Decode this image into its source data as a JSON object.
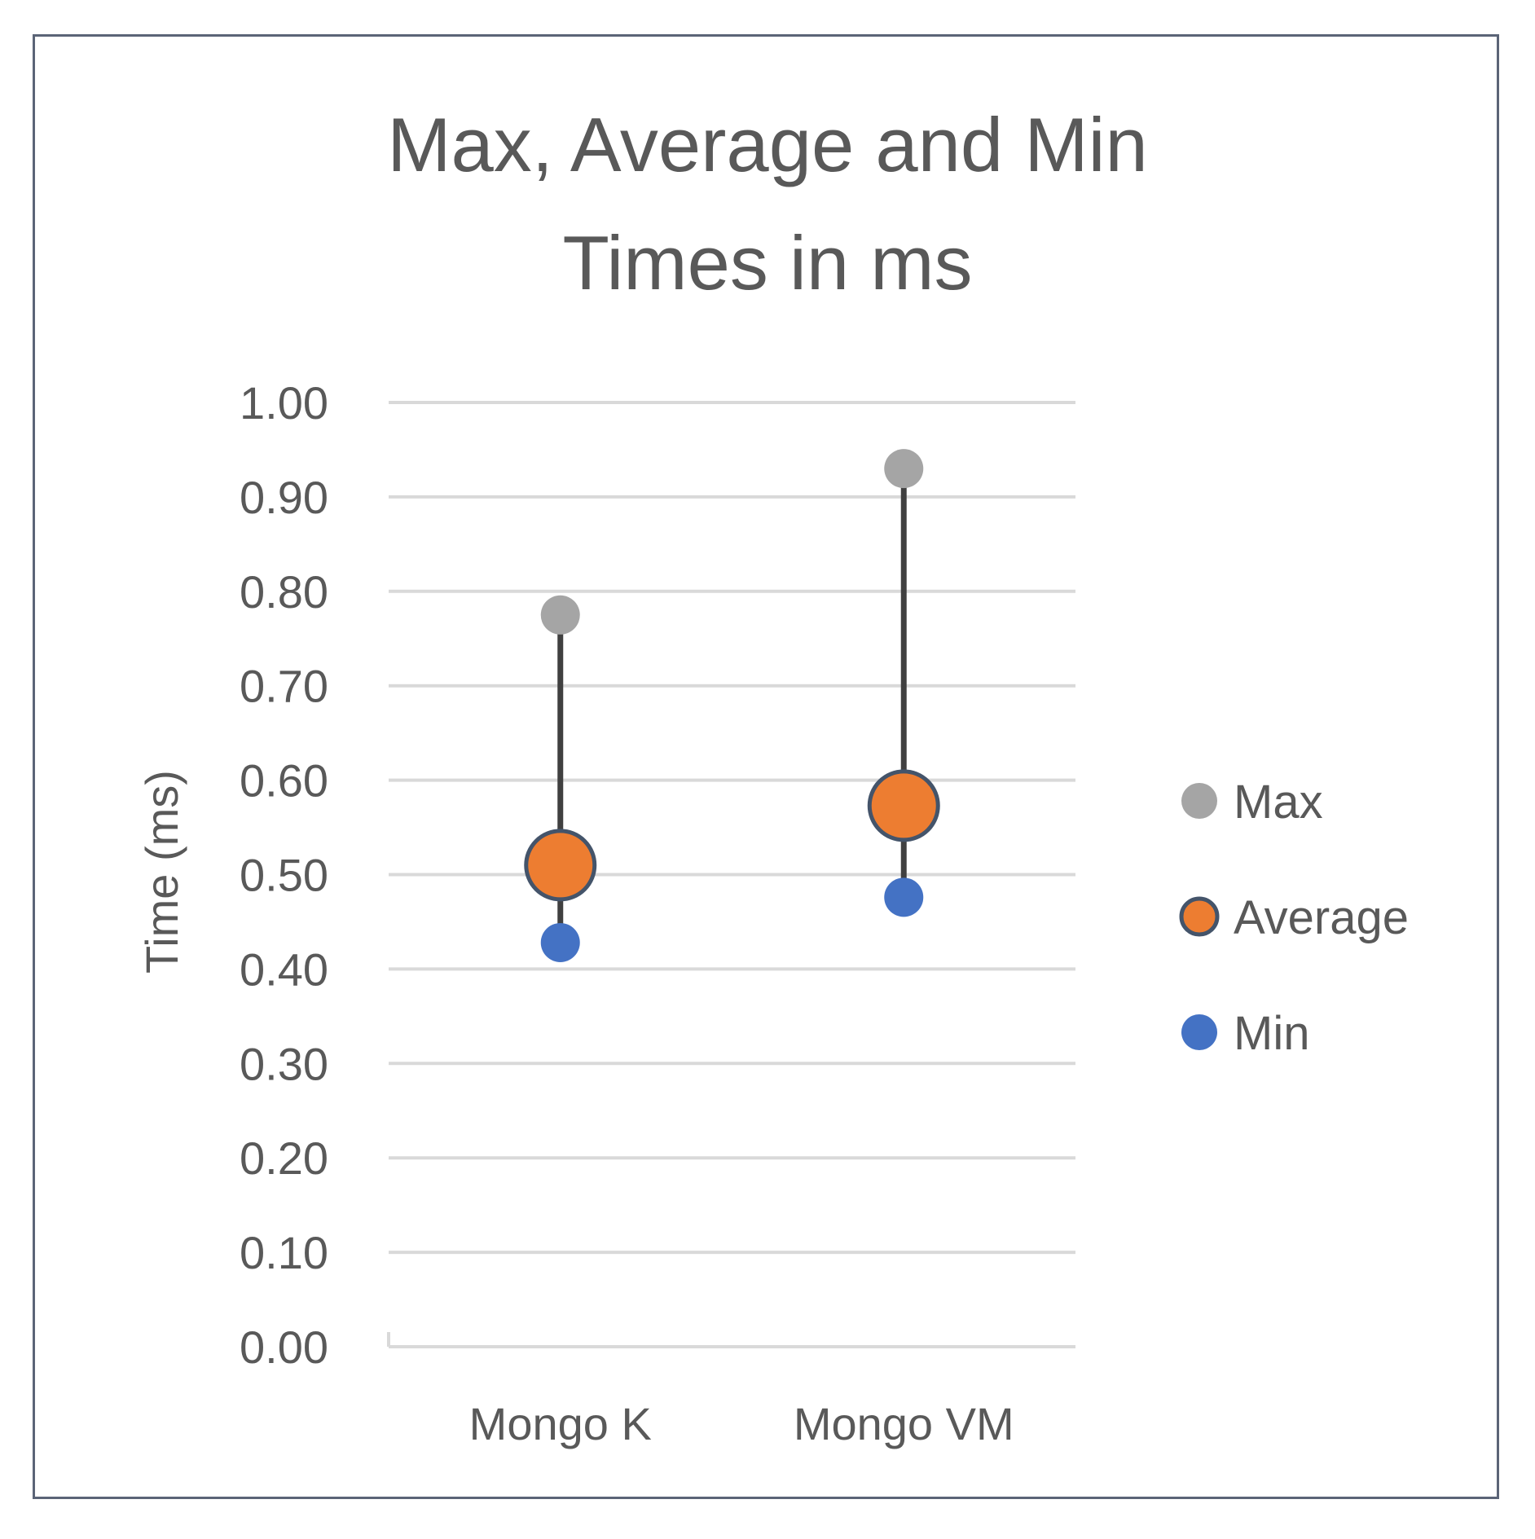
{
  "chart_data": {
    "type": "scatter",
    "title_lines": [
      "Max, Average and Min",
      "Times in ms"
    ],
    "ylabel": "Time (ms)",
    "xlabel": "",
    "categories": [
      "Mongo K",
      "Mongo VM"
    ],
    "ylim": [
      0,
      1
    ],
    "yticks": [
      "0.00",
      "0.10",
      "0.20",
      "0.30",
      "0.40",
      "0.50",
      "0.60",
      "0.70",
      "0.80",
      "0.90",
      "1.00"
    ],
    "grid": true,
    "legend_position": "right",
    "series": [
      {
        "name": "Max",
        "values": [
          0.775,
          0.93
        ],
        "color": "#a5a5a5"
      },
      {
        "name": "Average",
        "values": [
          0.51,
          0.573
        ],
        "color": "#ed7d31"
      },
      {
        "name": "Min",
        "values": [
          0.428,
          0.476
        ],
        "color": "#4472c4"
      }
    ],
    "range_line_color": "#404040",
    "marker_outline_color": "#44546a"
  }
}
